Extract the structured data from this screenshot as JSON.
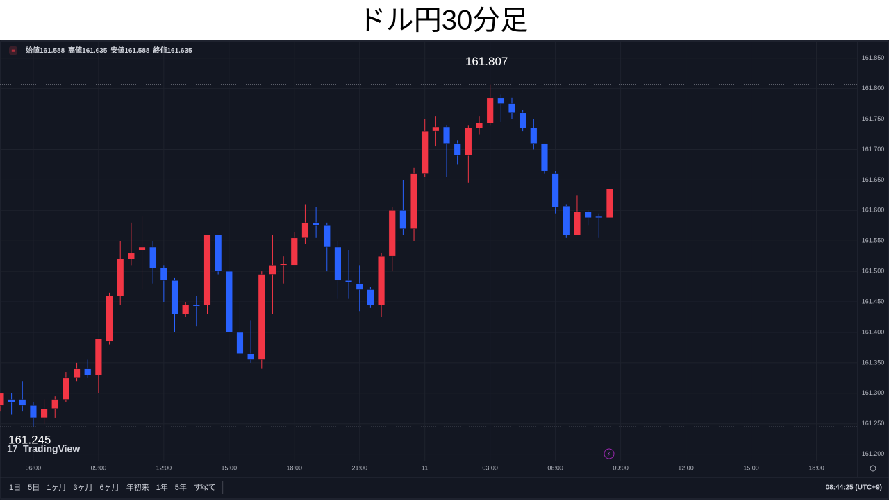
{
  "title": "ドル円30分足",
  "toolbar": [
    "1日",
    "5日",
    "1ヶ月",
    "3ヶ月",
    "6ヶ月",
    "年初来",
    "1年",
    "5年",
    "すべて"
  ],
  "clock": "08:44:25 (UTC+9)",
  "logo": "TradingView",
  "chart_data": {
    "type": "candlestick",
    "ohlc_labels": [
      "始値",
      "高値",
      "安値",
      "終値"
    ],
    "up_color": "#f23645",
    "down_color": "#2962ff",
    "x": [
      4.5,
      5.0,
      5.5,
      6.0,
      6.5,
      7.0,
      7.5,
      8.0,
      8.5,
      9.0,
      9.5,
      10.0,
      10.5,
      11.0,
      11.5,
      12.0,
      12.5,
      13.0,
      13.5,
      14.0,
      14.5,
      15.0,
      15.5,
      16.0,
      16.5,
      17.0,
      17.5,
      18.0,
      18.5,
      19.0,
      19.5,
      20.0,
      20.5,
      21.0,
      21.5,
      22.0,
      22.5,
      23.0,
      23.5,
      24.0,
      24.5,
      25.0,
      25.5,
      26.0,
      26.5,
      27.0,
      27.5,
      28.0,
      28.5,
      29.0,
      29.5,
      30.0,
      30.5,
      31.0,
      31.5,
      32.0,
      32.5
    ],
    "open": [
      161.28,
      161.29,
      161.29,
      161.28,
      161.26,
      161.275,
      161.29,
      161.325,
      161.34,
      161.33,
      161.385,
      161.46,
      161.52,
      161.535,
      161.54,
      161.505,
      161.485,
      161.43,
      161.445,
      161.445,
      161.56,
      161.5,
      161.4,
      161.365,
      161.355,
      161.495,
      161.51,
      161.51,
      161.555,
      161.58,
      161.575,
      161.54,
      161.485,
      161.48,
      161.47,
      161.445,
      161.525,
      161.6,
      161.57,
      161.66,
      161.73,
      161.737,
      161.71,
      161.69,
      161.735,
      161.743,
      161.785,
      161.775,
      161.76,
      161.735,
      161.71,
      161.66,
      161.607,
      161.56,
      161.598,
      161.59,
      161.588
    ],
    "high": [
      161.3,
      161.3,
      161.32,
      161.285,
      161.29,
      161.295,
      161.335,
      161.35,
      161.355,
      161.39,
      161.465,
      161.55,
      161.58,
      161.59,
      161.55,
      161.51,
      161.49,
      161.45,
      161.46,
      161.56,
      161.56,
      161.5,
      161.45,
      161.42,
      161.5,
      161.56,
      161.525,
      161.565,
      161.61,
      161.605,
      161.58,
      161.55,
      161.535,
      161.51,
      161.475,
      161.53,
      161.605,
      161.65,
      161.67,
      161.75,
      161.755,
      161.74,
      161.715,
      161.74,
      161.755,
      161.807,
      161.79,
      161.785,
      161.765,
      161.75,
      161.71,
      161.665,
      161.61,
      161.625,
      161.6,
      161.595,
      161.635
    ],
    "low": [
      161.27,
      161.265,
      161.27,
      161.245,
      161.25,
      161.26,
      161.285,
      161.32,
      161.325,
      161.3,
      161.38,
      161.445,
      161.51,
      161.47,
      161.48,
      161.45,
      161.4,
      161.425,
      161.41,
      161.43,
      161.495,
      161.4,
      161.355,
      161.35,
      161.34,
      161.43,
      161.48,
      161.51,
      161.545,
      161.555,
      161.5,
      161.455,
      161.455,
      161.435,
      161.44,
      161.425,
      161.5,
      161.56,
      161.55,
      161.655,
      161.705,
      161.655,
      161.675,
      161.645,
      161.725,
      161.74,
      161.745,
      161.75,
      161.73,
      161.7,
      161.66,
      161.595,
      161.555,
      161.56,
      161.575,
      161.555,
      161.588
    ],
    "close": [
      161.3,
      161.285,
      161.28,
      161.26,
      161.275,
      161.29,
      161.325,
      161.34,
      161.33,
      161.39,
      161.46,
      161.52,
      161.53,
      161.54,
      161.505,
      161.485,
      161.43,
      161.445,
      161.443,
      161.56,
      161.5,
      161.4,
      161.365,
      161.355,
      161.495,
      161.51,
      161.512,
      161.555,
      161.58,
      161.575,
      161.54,
      161.485,
      161.482,
      161.47,
      161.445,
      161.525,
      161.6,
      161.57,
      161.66,
      161.73,
      161.737,
      161.71,
      161.69,
      161.735,
      161.743,
      161.785,
      161.775,
      161.76,
      161.735,
      161.71,
      161.665,
      161.605,
      161.56,
      161.598,
      161.588,
      161.588,
      161.635
    ],
    "xlim": [
      4.47,
      43.9
    ],
    "xticks": [
      {
        "value": 6,
        "label": "06:00"
      },
      {
        "value": 9,
        "label": "09:00"
      },
      {
        "value": 12,
        "label": "12:00"
      },
      {
        "value": 15,
        "label": "15:00"
      },
      {
        "value": 18,
        "label": "18:00"
      },
      {
        "value": 21,
        "label": "21:00"
      },
      {
        "value": 24,
        "label": "11"
      },
      {
        "value": 27,
        "label": "03:00"
      },
      {
        "value": 30,
        "label": "06:00"
      },
      {
        "value": 33,
        "label": "09:00"
      },
      {
        "value": 36,
        "label": "12:00"
      },
      {
        "value": 39,
        "label": "15:00"
      },
      {
        "value": 42,
        "label": "18:00"
      }
    ],
    "ylim": [
      161.162,
      161.877
    ],
    "yticks": [
      {
        "value": 161.2,
        "label": "161.200"
      },
      {
        "value": 161.25,
        "label": "161.250"
      },
      {
        "value": 161.3,
        "label": "161.300"
      },
      {
        "value": 161.35,
        "label": "161.350"
      },
      {
        "value": 161.4,
        "label": "161.400"
      },
      {
        "value": 161.45,
        "label": "161.450"
      },
      {
        "value": 161.5,
        "label": "161.500"
      },
      {
        "value": 161.55,
        "label": "161.550"
      },
      {
        "value": 161.6,
        "label": "161.600"
      },
      {
        "value": 161.65,
        "label": "161.650"
      },
      {
        "value": 161.7,
        "label": "161.700"
      },
      {
        "value": 161.75,
        "label": "161.750"
      },
      {
        "value": 161.8,
        "label": "161.800"
      },
      {
        "value": 161.85,
        "label": "161.850"
      }
    ],
    "grid": true
  }
}
